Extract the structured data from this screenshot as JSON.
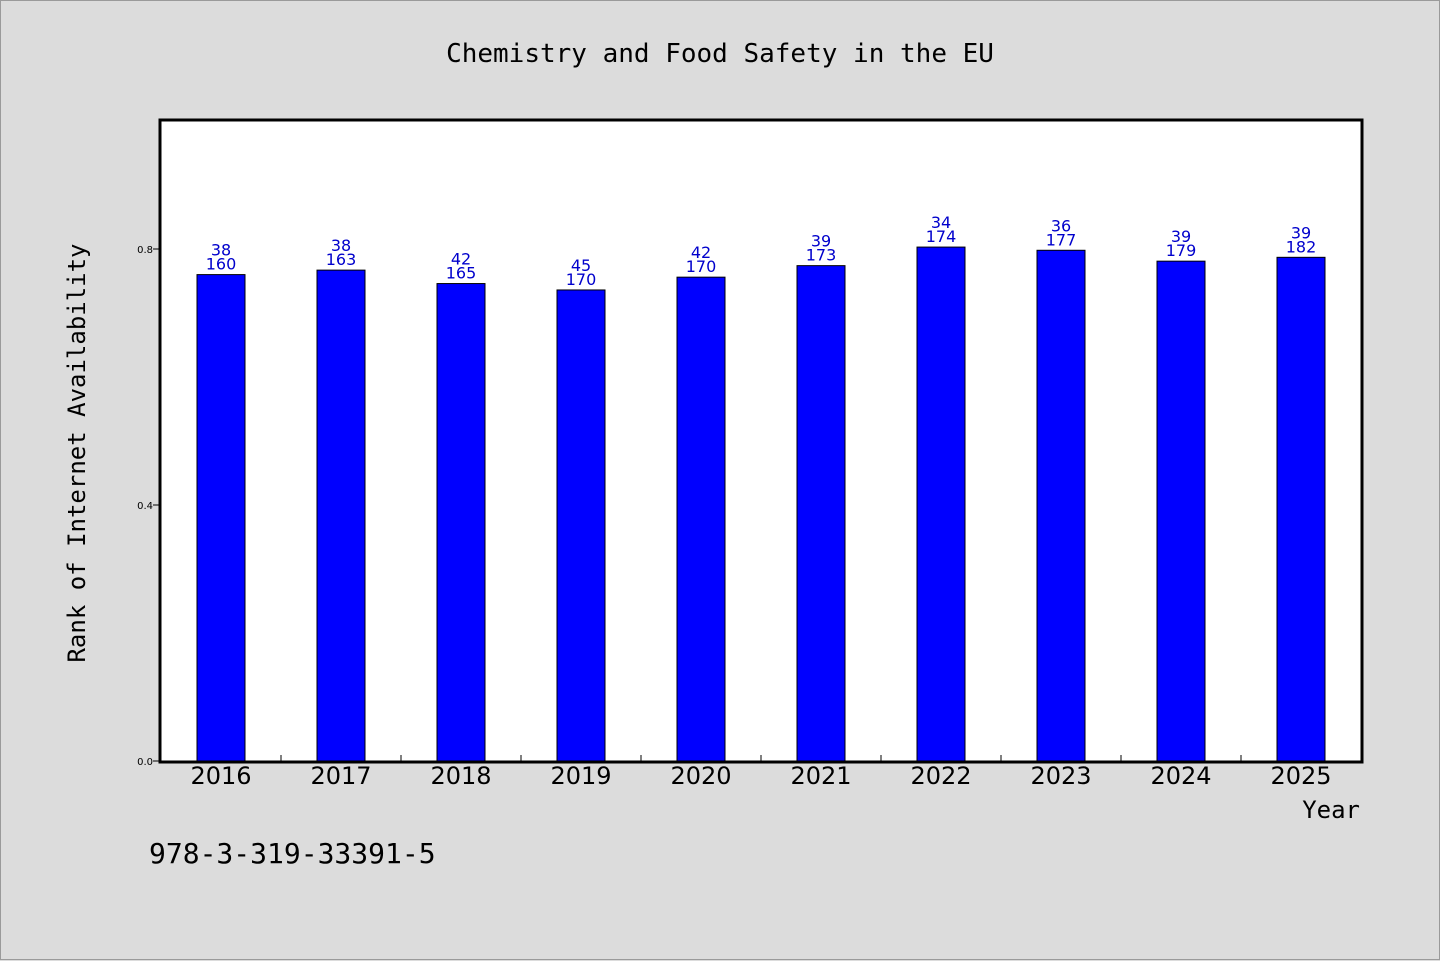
{
  "chart_data": {
    "type": "bar",
    "title": "Chemistry and Food Safety in the EU",
    "xlabel": "Year",
    "ylabel": "Rank of Internet Availability",
    "categories": [
      "2016",
      "2017",
      "2018",
      "2019",
      "2020",
      "2021",
      "2022",
      "2023",
      "2024",
      "2025"
    ],
    "series": [
      {
        "values": [
          0.76,
          0.767,
          0.746,
          0.736,
          0.756,
          0.774,
          0.803,
          0.798,
          0.781,
          0.787
        ]
      }
    ],
    "labels_top": [
      "38",
      "38",
      "42",
      "45",
      "42",
      "39",
      "34",
      "36",
      "39",
      "39"
    ],
    "labels_bottom": [
      "160",
      "163",
      "165",
      "170",
      "170",
      "173",
      "174",
      "177",
      "179",
      "182"
    ],
    "ylim": [
      0,
      1.0
    ],
    "yticks": [
      "0.0",
      "0.4",
      "0.8"
    ],
    "ytick_values": [
      0.0,
      0.4,
      0.8
    ],
    "grid": false,
    "colors": {
      "bar": "#0000ff",
      "label": "#0000cc",
      "background": "#dcdcdc",
      "plot": "#ffffff"
    }
  },
  "footnote": "978-3-319-33391-5"
}
